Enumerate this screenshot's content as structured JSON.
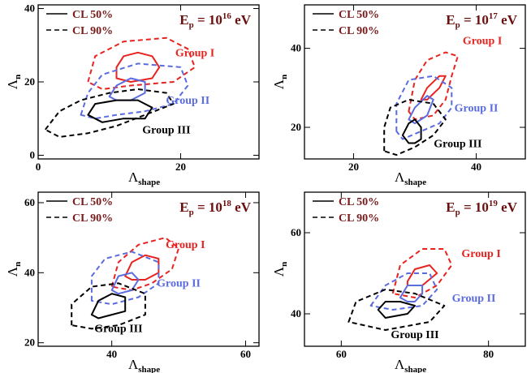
{
  "figure": {
    "legend": {
      "solid_label": "CL 50%",
      "dashed_label": "CL 90%"
    },
    "x_axis_title": {
      "main": "Λ",
      "sub": "shape"
    },
    "y_axis_title": {
      "main": "Λ",
      "sub": "n"
    },
    "energy_prefix": "E",
    "energy_sub": "p",
    "energy_mid": " = 10",
    "energy_unit": " eV"
  },
  "colors": {
    "group1": "#e8231f",
    "group2": "#5b6be0",
    "group3": "#000000",
    "legend_text": "#7a1a1a",
    "energy_text": "#6b0f0f"
  },
  "chart_data": [
    {
      "type": "contour",
      "energy_exponent": "16",
      "xlim": [
        0,
        31
      ],
      "ylim": [
        -1,
        41
      ],
      "xticks": [
        0,
        20
      ],
      "yticks": [
        0,
        20,
        40
      ],
      "xlabel": "Λshape",
      "ylabel": "Λn",
      "groups": [
        {
          "name": "Group I",
          "color": "#e8231f",
          "label_pos": [
            22,
            27
          ],
          "cl50": [
            [
              11,
              24
            ],
            [
              12,
              27
            ],
            [
              14,
              28
            ],
            [
              16,
              27
            ],
            [
              17,
              24
            ],
            [
              16,
              21
            ],
            [
              13,
              20
            ],
            [
              11,
              21
            ]
          ],
          "cl90": [
            [
              7,
              20
            ],
            [
              8,
              27
            ],
            [
              12,
              31
            ],
            [
              18,
              32
            ],
            [
              21,
              29
            ],
            [
              22,
              24
            ],
            [
              19,
              20
            ],
            [
              13,
              19
            ],
            [
              9,
              18
            ]
          ]
        },
        {
          "name": "Group II",
          "color": "#5b6be0",
          "label_pos": [
            21,
            14
          ],
          "cl50": [
            [
              10,
              16
            ],
            [
              11,
              19
            ],
            [
              13,
              21
            ],
            [
              15,
              20
            ],
            [
              15,
              17
            ],
            [
              13,
              15
            ],
            [
              11,
              15
            ]
          ],
          "cl90": [
            [
              6,
              11
            ],
            [
              7,
              17
            ],
            [
              9,
              22
            ],
            [
              14,
              25
            ],
            [
              20,
              24
            ],
            [
              21,
              19
            ],
            [
              19,
              14
            ],
            [
              15,
              12
            ],
            [
              11,
              11
            ],
            [
              8,
              10
            ]
          ]
        },
        {
          "name": "Group III",
          "color": "#000000",
          "label_pos": [
            18,
            6
          ],
          "cl50": [
            [
              7,
              11
            ],
            [
              8,
              14
            ],
            [
              11,
              15
            ],
            [
              14,
              15
            ],
            [
              16,
              13
            ],
            [
              15,
              10
            ],
            [
              12,
              10
            ],
            [
              9,
              9
            ]
          ],
          "cl90": [
            [
              1,
              7
            ],
            [
              3,
              12
            ],
            [
              6,
              15
            ],
            [
              10,
              17
            ],
            [
              14,
              18
            ],
            [
              18,
              17
            ],
            [
              19,
              14
            ],
            [
              15,
              11
            ],
            [
              11,
              8
            ],
            [
              7,
              6
            ],
            [
              3,
              5
            ]
          ]
        }
      ]
    },
    {
      "type": "contour",
      "energy_exponent": "17",
      "xlim": [
        12,
        48
      ],
      "ylim": [
        12,
        51
      ],
      "xticks": [
        20,
        40
      ],
      "yticks": [
        20,
        40
      ],
      "xlabel": "Λshape",
      "ylabel": "Λn",
      "groups": [
        {
          "name": "Group I",
          "color": "#e8231f",
          "label_pos": [
            41,
            41
          ],
          "cl50": [
            [
              31,
              27
            ],
            [
              32,
              30
            ],
            [
              34,
              33
            ],
            [
              35,
              33
            ],
            [
              34,
              30
            ],
            [
              32,
              27
            ]
          ],
          "cl90": [
            [
              29,
              24
            ],
            [
              30,
              32
            ],
            [
              32,
              37
            ],
            [
              35,
              39
            ],
            [
              37,
              38
            ],
            [
              36,
              33
            ],
            [
              35,
              27
            ],
            [
              33,
              23
            ],
            [
              30,
              22
            ]
          ]
        },
        {
          "name": "Group II",
          "color": "#5b6be0",
          "label_pos": [
            40,
            24
          ],
          "cl50": [
            [
              29,
              22
            ],
            [
              30,
              25
            ],
            [
              32,
              28
            ],
            [
              33,
              27
            ],
            [
              32,
              23
            ],
            [
              30,
              21
            ]
          ],
          "cl90": [
            [
              27,
              19
            ],
            [
              27,
              26
            ],
            [
              29,
              32
            ],
            [
              33,
              33
            ],
            [
              36,
              30
            ],
            [
              36,
              25
            ],
            [
              34,
              21
            ],
            [
              31,
              19
            ],
            [
              28,
              17
            ]
          ]
        },
        {
          "name": "Group III",
          "color": "#000000",
          "label_pos": [
            37,
            15
          ],
          "cl50": [
            [
              28,
              18
            ],
            [
              29,
              21
            ],
            [
              30,
              22
            ],
            [
              31,
              20
            ],
            [
              31,
              17
            ],
            [
              30,
              16
            ],
            [
              29,
              16
            ]
          ],
          "cl90": [
            [
              25,
              14
            ],
            [
              25,
              20
            ],
            [
              26,
              25
            ],
            [
              29,
              27
            ],
            [
              33,
              26
            ],
            [
              35,
              22
            ],
            [
              33,
              18
            ],
            [
              30,
              15
            ],
            [
              27,
              13
            ]
          ]
        }
      ]
    },
    {
      "type": "contour",
      "energy_exponent": "18",
      "xlim": [
        29,
        62
      ],
      "ylim": [
        19,
        63
      ],
      "xticks": [
        40,
        60
      ],
      "yticks": [
        20,
        40,
        60
      ],
      "xlabel": "Λshape",
      "ylabel": "Λn",
      "groups": [
        {
          "name": "Group I",
          "color": "#e8231f",
          "label_pos": [
            51,
            47
          ],
          "cl50": [
            [
              42,
              39
            ],
            [
              43,
              43
            ],
            [
              45,
              45
            ],
            [
              47,
              44
            ],
            [
              47,
              40
            ],
            [
              45,
              38
            ],
            [
              43,
              38
            ]
          ],
          "cl90": [
            [
              40,
              36
            ],
            [
              41,
              43
            ],
            [
              44,
              48
            ],
            [
              48,
              50
            ],
            [
              50,
              47
            ],
            [
              49,
              41
            ],
            [
              46,
              37
            ],
            [
              43,
              35
            ]
          ]
        },
        {
          "name": "Group II",
          "color": "#5b6be0",
          "label_pos": [
            50,
            36
          ],
          "cl50": [
            [
              40,
              35
            ],
            [
              41,
              39
            ],
            [
              43,
              40
            ],
            [
              44,
              38
            ],
            [
              43,
              35
            ],
            [
              41,
              34
            ]
          ],
          "cl90": [
            [
              37,
              32
            ],
            [
              37,
              39
            ],
            [
              39,
              44
            ],
            [
              43,
              46
            ],
            [
              47,
              43
            ],
            [
              47,
              37
            ],
            [
              44,
              33
            ],
            [
              40,
              31
            ]
          ]
        },
        {
          "name": "Group III",
          "color": "#000000",
          "label_pos": [
            41,
            23
          ],
          "cl50": [
            [
              37,
              28
            ],
            [
              38,
              32
            ],
            [
              40,
              34
            ],
            [
              42,
              33
            ],
            [
              42,
              29
            ],
            [
              40,
              28
            ],
            [
              38,
              27
            ]
          ],
          "cl90": [
            [
              34,
              25
            ],
            [
              34,
              31
            ],
            [
              37,
              36
            ],
            [
              41,
              37
            ],
            [
              45,
              34
            ],
            [
              45,
              28
            ],
            [
              41,
              25
            ],
            [
              37,
              24
            ]
          ]
        }
      ]
    },
    {
      "type": "contour",
      "energy_exponent": "19",
      "xlim": [
        55,
        85
      ],
      "ylim": [
        32,
        70
      ],
      "xticks": [
        60,
        80
      ],
      "yticks": [
        40,
        60
      ],
      "xlabel": "Λshape",
      "ylabel": "Λn",
      "groups": [
        {
          "name": "Group I",
          "color": "#e8231f",
          "label_pos": [
            79,
            54
          ],
          "cl50": [
            [
              69,
              48
            ],
            [
              70,
              51
            ],
            [
              72,
              52
            ],
            [
              73,
              50
            ],
            [
              71,
              47
            ],
            [
              69,
              47
            ]
          ],
          "cl90": [
            [
              67,
              45
            ],
            [
              68,
              52
            ],
            [
              71,
              56
            ],
            [
              74,
              56
            ],
            [
              75,
              52
            ],
            [
              73,
              47
            ],
            [
              70,
              44
            ]
          ]
        },
        {
          "name": "Group II",
          "color": "#5b6be0",
          "label_pos": [
            78,
            43
          ],
          "cl50": [
            [
              68,
              44
            ],
            [
              69,
              47
            ],
            [
              71,
              47
            ],
            [
              71,
              45
            ],
            [
              70,
              43
            ],
            [
              69,
              43
            ]
          ],
          "cl90": [
            [
              64,
              42
            ],
            [
              66,
              47
            ],
            [
              69,
              50
            ],
            [
              72,
              50
            ],
            [
              73,
              46
            ],
            [
              71,
              42
            ],
            [
              67,
              41
            ]
          ]
        },
        {
          "name": "Group III",
          "color": "#000000",
          "label_pos": [
            70,
            34
          ],
          "cl50": [
            [
              65,
              41
            ],
            [
              66,
              43
            ],
            [
              68,
              43
            ],
            [
              70,
              42
            ],
            [
              69,
              40
            ],
            [
              66,
              39
            ]
          ],
          "cl90": [
            [
              61,
              38
            ],
            [
              62,
              43
            ],
            [
              66,
              46
            ],
            [
              70,
              45
            ],
            [
              74,
              42
            ],
            [
              72,
              38
            ],
            [
              66,
              36
            ]
          ]
        }
      ]
    }
  ]
}
